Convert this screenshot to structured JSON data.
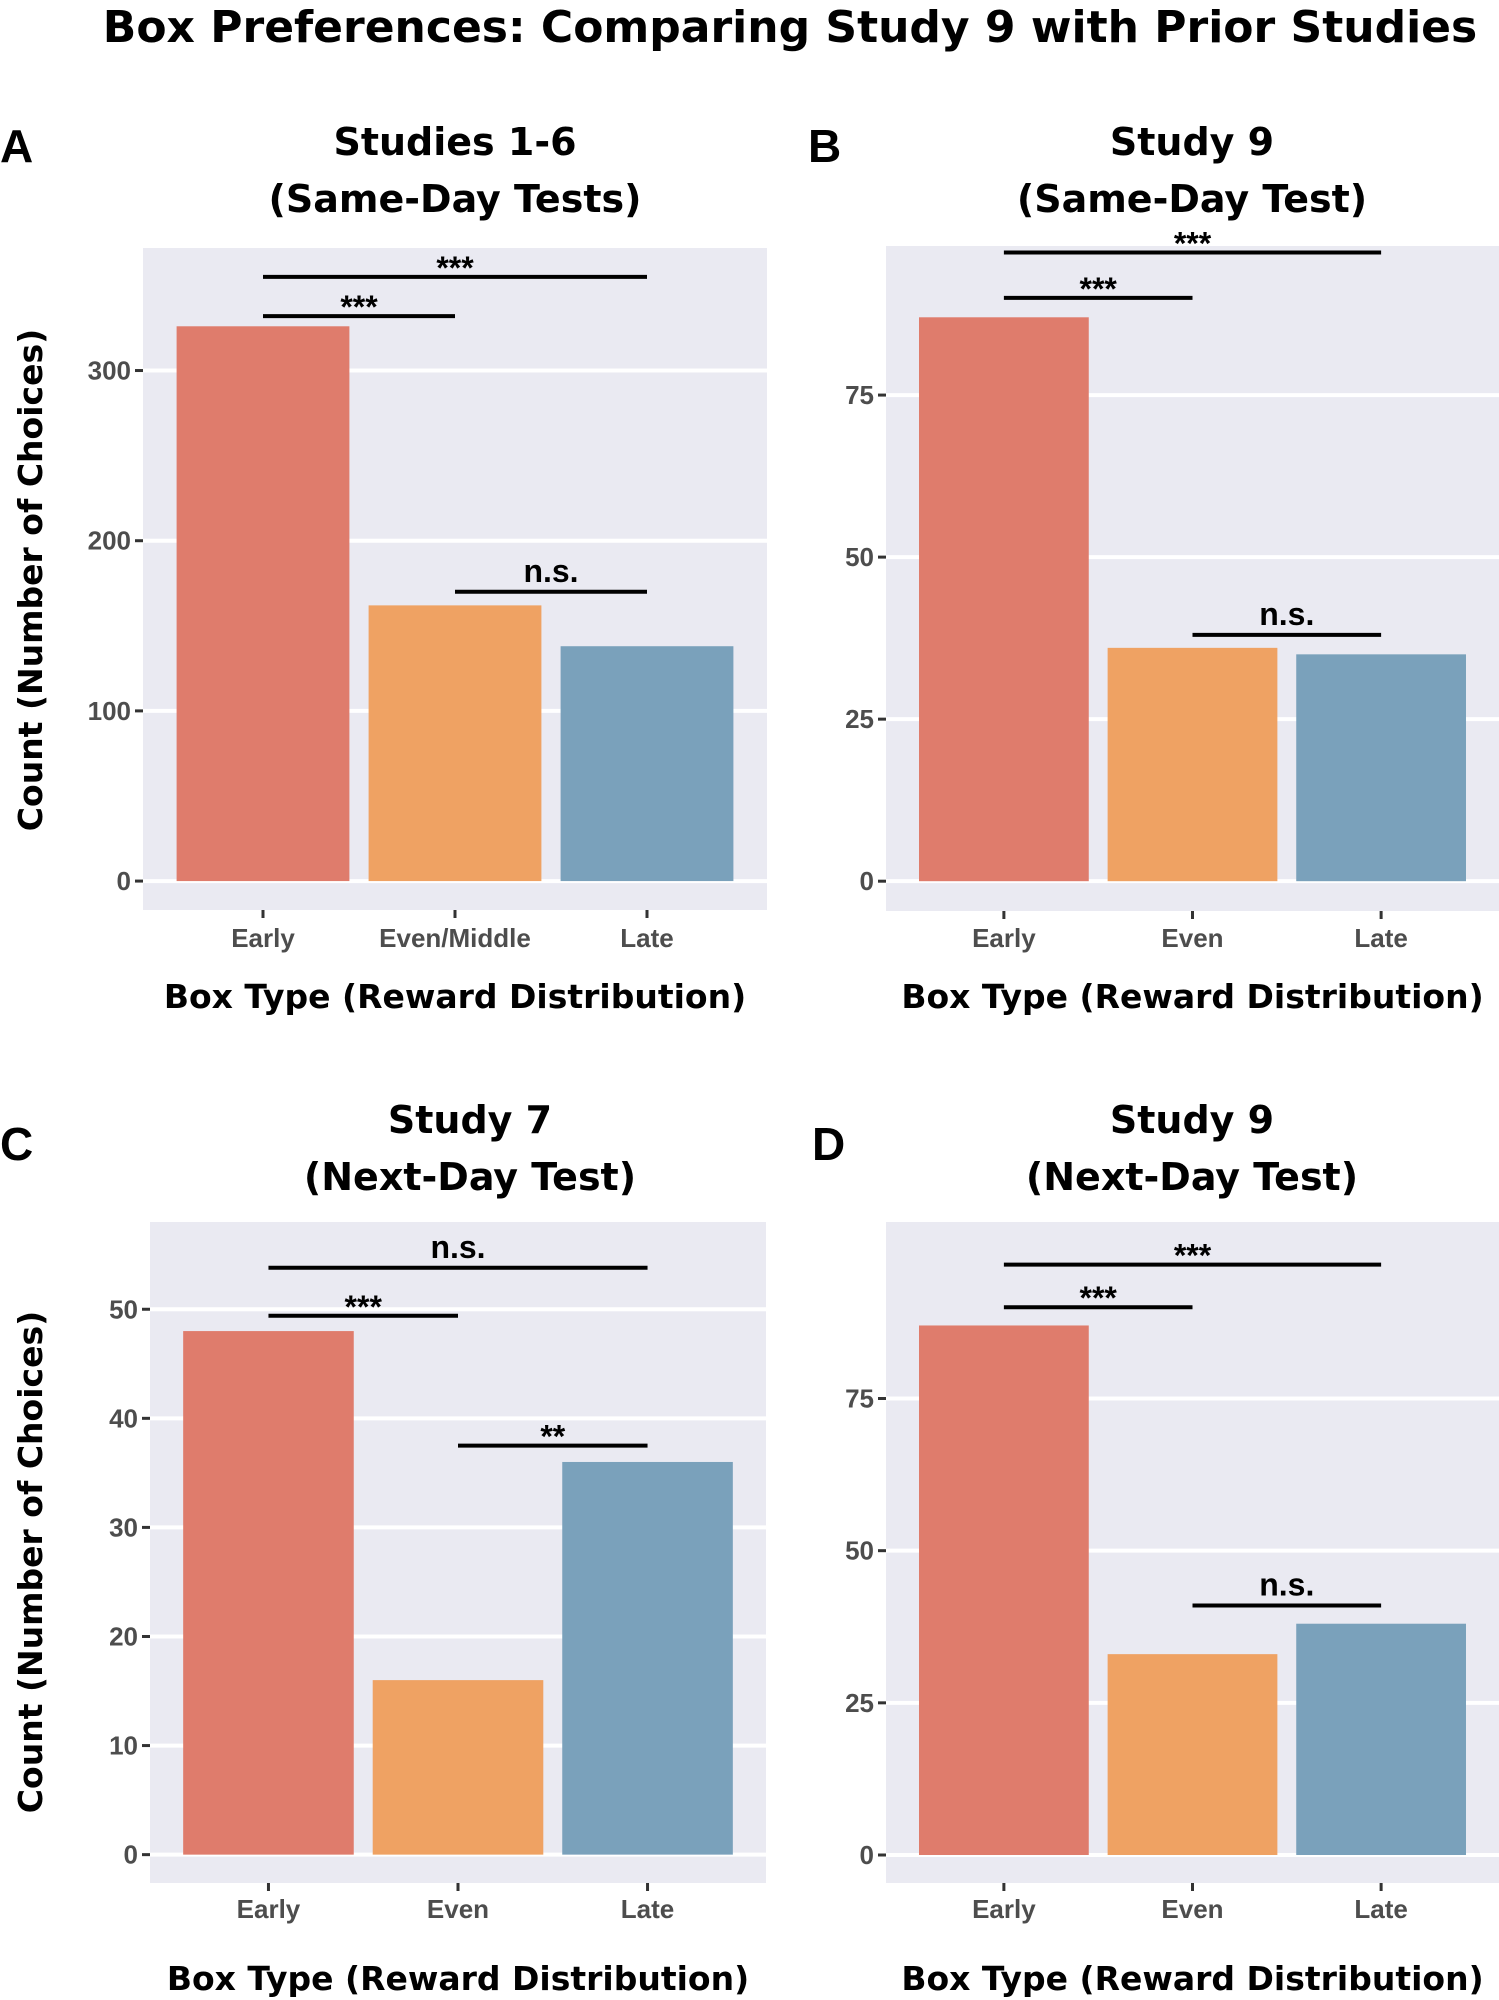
{
  "figure": {
    "title": "Box Preferences: Comparing Study 9 with Prior Studies"
  },
  "chart_data": [
    {
      "panel": "A",
      "type": "bar",
      "title": "Studies 1-6",
      "subtitle": "(Same-Day Tests)",
      "xlabel": "Box Type (Reward Distribution)",
      "ylabel": "Count (Number of Choices)",
      "categories": [
        "Early",
        "Even/Middle",
        "Late"
      ],
      "values": [
        326,
        162,
        138
      ],
      "yticks": [
        0,
        100,
        200,
        300
      ],
      "ylim": [
        -17,
        372
      ],
      "grid": true,
      "colors": [
        "#DF7C6C",
        "#EFA263",
        "#7AA1BB"
      ],
      "comparisons": [
        {
          "from": "Early",
          "to": "Late",
          "label": "***",
          "y": 355
        },
        {
          "from": "Early",
          "to": "Even/Middle",
          "label": "***",
          "y": 332
        },
        {
          "from": "Even/Middle",
          "to": "Late",
          "label": "n.s.",
          "y": 170
        }
      ]
    },
    {
      "panel": "B",
      "type": "bar",
      "title": "Study 9",
      "subtitle": "(Same-Day Test)",
      "xlabel": "Box Type (Reward Distribution)",
      "ylabel": "",
      "categories": [
        "Early",
        "Even",
        "Late"
      ],
      "values": [
        87,
        36,
        35
      ],
      "yticks": [
        0,
        25,
        50,
        75
      ],
      "ylim": [
        -4.6,
        98
      ],
      "grid": true,
      "colors": [
        "#DF7C6C",
        "#EFA263",
        "#7AA1BB"
      ],
      "comparisons": [
        {
          "from": "Early",
          "to": "Late",
          "label": "***",
          "y": 97
        },
        {
          "from": "Early",
          "to": "Even",
          "label": "***",
          "y": 90
        },
        {
          "from": "Even",
          "to": "Late",
          "label": "n.s.",
          "y": 38
        }
      ]
    },
    {
      "panel": "C",
      "type": "bar",
      "title": "Study 7",
      "subtitle": "(Next-Day Test)",
      "xlabel": "Box Type (Reward Distribution)",
      "ylabel": "Count (Number of Choices)",
      "categories": [
        "Early",
        "Even",
        "Late"
      ],
      "values": [
        48,
        16,
        36
      ],
      "yticks": [
        0,
        10,
        20,
        30,
        40,
        50
      ],
      "ylim": [
        -2.6,
        58
      ],
      "grid": true,
      "colors": [
        "#DF7C6C",
        "#EFA263",
        "#7AA1BB"
      ],
      "comparisons": [
        {
          "from": "Early",
          "to": "Late",
          "label": "n.s.",
          "y": 53.8
        },
        {
          "from": "Early",
          "to": "Even",
          "label": "***",
          "y": 49.4
        },
        {
          "from": "Even",
          "to": "Late",
          "label": "**",
          "y": 37.5
        }
      ]
    },
    {
      "panel": "D",
      "type": "bar",
      "title": "Study 9",
      "subtitle": "(Next-Day Test)",
      "xlabel": "Box Type (Reward Distribution)",
      "ylabel": "",
      "categories": [
        "Early",
        "Even",
        "Late"
      ],
      "values": [
        87,
        33,
        38
      ],
      "yticks": [
        0,
        25,
        50,
        75
      ],
      "ylim": [
        -4.6,
        104
      ],
      "grid": true,
      "colors": [
        "#DF7C6C",
        "#EFA263",
        "#7AA1BB"
      ],
      "comparisons": [
        {
          "from": "Early",
          "to": "Late",
          "label": "***",
          "y": 97
        },
        {
          "from": "Early",
          "to": "Even",
          "label": "***",
          "y": 90
        },
        {
          "from": "Even",
          "to": "Late",
          "label": "n.s.",
          "y": 41
        }
      ]
    }
  ]
}
